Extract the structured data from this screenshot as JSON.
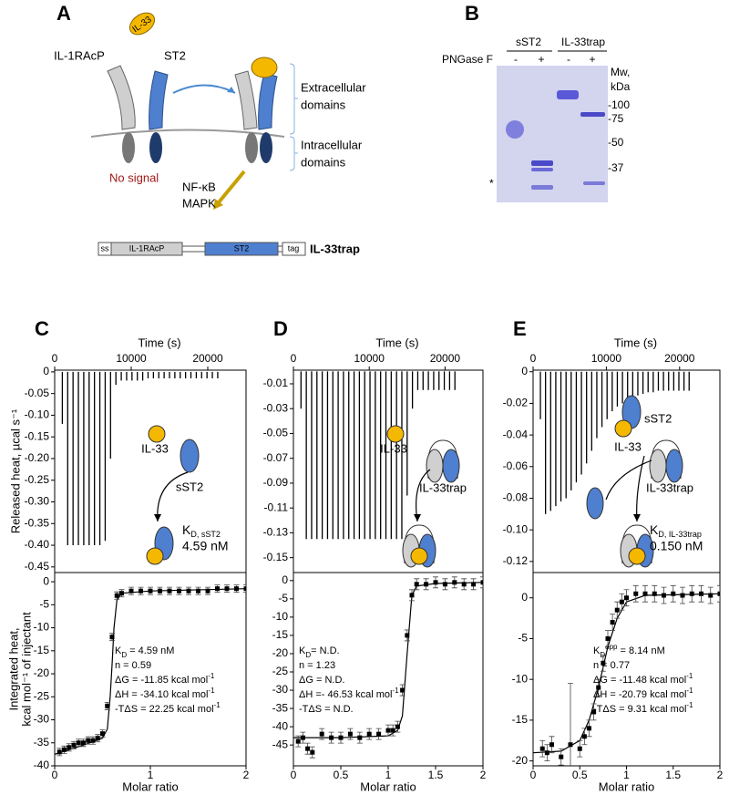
{
  "panel_a": {
    "label": "A",
    "ligand": "IL-33",
    "coreceptor": "IL-1RAcP",
    "receptor": "ST2",
    "extracellular": [
      "Extracellular",
      "domains"
    ],
    "intracellular": [
      "Intracellular",
      "domains"
    ],
    "no_signal": "No signal",
    "signaling": [
      "NF-κB",
      "MAPK"
    ],
    "construct": {
      "parts": [
        "ss",
        "IL-1RAcP",
        "ST2",
        "tag"
      ],
      "name": "IL-33trap"
    }
  },
  "panel_b": {
    "label": "B",
    "groups": [
      "sST2",
      "IL-33trap"
    ],
    "treatment": "PNGase F",
    "lanes": [
      "-",
      "+",
      "-",
      "+"
    ],
    "mw_label": [
      "Mw,",
      "kDa"
    ],
    "markers": [
      "-100",
      "-75",
      "-50",
      "-37"
    ],
    "asterisk": "*"
  },
  "chart_data": [
    {
      "type": "spike",
      "panel_label": "C",
      "xlabel": "Time (s)",
      "ylabel": "Released heat, µcal s⁻¹",
      "color": "#000000",
      "x": [
        1000,
        1700,
        2400,
        3100,
        3800,
        4500,
        5200,
        5900,
        6600,
        7300,
        8000,
        8700,
        9400,
        10100,
        10800,
        11500,
        12200,
        12900,
        13600,
        14300,
        15000,
        15700,
        16400,
        17100,
        17800,
        18500,
        19200,
        19900,
        20600,
        21300
      ],
      "values": [
        -0.12,
        -0.4,
        -0.4,
        -0.4,
        -0.4,
        -0.4,
        -0.4,
        -0.4,
        -0.39,
        -0.2,
        -0.03,
        -0.02,
        -0.02,
        -0.02,
        -0.02,
        -0.02,
        -0.015,
        -0.015,
        -0.015,
        -0.015,
        -0.015,
        -0.015,
        -0.015,
        -0.015,
        -0.015,
        -0.015,
        -0.015,
        -0.015,
        -0.015,
        -0.015
      ],
      "xlim": [
        0,
        25000
      ],
      "xticks": [
        0,
        10000,
        20000
      ],
      "ylim": [
        -0.463,
        0.004
      ],
      "yticks": [
        0,
        -0.05,
        {
          "value": -0.1,
          "label": "-0.10"
        },
        -0.15,
        {
          "value": -0.2,
          "label": "-0.20"
        },
        -0.25,
        {
          "value": -0.3,
          "label": "-0.30"
        },
        -0.35,
        {
          "value": -0.4,
          "label": "-0.40"
        },
        -0.45
      ],
      "scheme": {
        "ligand": "IL-33",
        "receptor": "sST2"
      },
      "kd": {
        "k": "K",
        "sub": "D, sST2",
        "value": "4.59 nM"
      }
    },
    {
      "type": "scatter",
      "xlabel": "Molar ratio",
      "ylabel": [
        "Integrated heat,",
        "kcal mol⁻¹ of injectant"
      ],
      "color": "#000000",
      "x": [
        0.05,
        0.1,
        0.15,
        0.2,
        0.25,
        0.3,
        0.35,
        0.4,
        0.45,
        0.5,
        0.55,
        0.6,
        0.65,
        0.7,
        0.8,
        0.9,
        1.0,
        1.1,
        1.2,
        1.3,
        1.4,
        1.5,
        1.6,
        1.7,
        1.8,
        1.9,
        2.0
      ],
      "values": [
        -37,
        -36.5,
        -36,
        -35.5,
        -35,
        -35,
        -34.5,
        -34.5,
        -34,
        -33,
        -27,
        -12,
        -3,
        -2.5,
        -2,
        -2,
        -2,
        -2,
        -2,
        -2,
        -2,
        -2,
        -2,
        -1.5,
        -1.5,
        -1.5,
        -1.5
      ],
      "errors": [
        0.8,
        0.8,
        0.8,
        0.8,
        0.8,
        0.8,
        0.8,
        0.8,
        0.8,
        0.8,
        0.8,
        0.8,
        0.8,
        0.8,
        0.8,
        0.8,
        0.8,
        0.8,
        0.8,
        0.8,
        0.8,
        0.8,
        0.8,
        0.8,
        0.8,
        0.8,
        0.8
      ],
      "fit": {
        "x": [
          0,
          0.3,
          0.5,
          0.55,
          0.58,
          0.6,
          0.62,
          0.65,
          0.7,
          1.0,
          2.0
        ],
        "y": [
          -37.5,
          -35.5,
          -34,
          -32,
          -25,
          -18,
          -10,
          -4,
          -2.5,
          -2,
          -1.5
        ]
      },
      "xlim": [
        0,
        2
      ],
      "xticks": [
        0,
        1,
        2
      ],
      "ylim": [
        -40,
        2
      ],
      "yticks": [
        0,
        -5,
        -10,
        -15,
        -20,
        -25,
        -30,
        -35,
        -40
      ],
      "params": [
        [
          {
            "t": "K"
          },
          {
            "sub": "D"
          },
          {
            "t": " = 4.59 nM"
          }
        ],
        [
          {
            "t": "n = 0.59"
          }
        ],
        [
          {
            "t": "ΔG = -11.85 kcal mol"
          },
          {
            "sup": "-1"
          }
        ],
        [
          {
            "t": "ΔH = -34.10 kcal mol"
          },
          {
            "sup": "-1"
          }
        ],
        [
          {
            "t": "-TΔS = 22.25 kcal mol"
          },
          {
            "sup": "-1"
          }
        ]
      ]
    },
    {
      "type": "spike",
      "panel_label": "D",
      "xlabel": "Time (s)",
      "color": "#000000",
      "x": [
        1000,
        1700,
        2400,
        3100,
        3800,
        4500,
        5200,
        5900,
        6600,
        7300,
        8000,
        8700,
        9400,
        10100,
        10800,
        11500,
        12200,
        12900,
        13600,
        14300,
        15000,
        15700,
        16400,
        17100,
        17800,
        18500,
        19200,
        19900,
        20600,
        21300
      ],
      "values": [
        -0.03,
        -0.135,
        -0.135,
        -0.135,
        -0.135,
        -0.135,
        -0.135,
        -0.135,
        -0.135,
        -0.135,
        -0.135,
        -0.135,
        -0.135,
        -0.135,
        -0.135,
        -0.135,
        -0.135,
        -0.135,
        -0.135,
        -0.135,
        -0.1,
        -0.03,
        -0.015,
        -0.015,
        -0.015,
        -0.015,
        -0.015,
        -0.015,
        -0.015,
        -0.015
      ],
      "xlim": [
        0,
        25000
      ],
      "xticks": [
        0,
        10000,
        20000
      ],
      "ylim": [
        -0.162,
        0.001
      ],
      "yticks": [
        -0.01,
        -0.03,
        -0.05,
        -0.07,
        -0.09,
        -0.11,
        -0.13,
        -0.15
      ],
      "scheme": {
        "ligand": "IL-33",
        "receptor": "IL-33trap"
      }
    },
    {
      "type": "scatter",
      "xlabel": "Molar ratio",
      "color": "#000000",
      "x": [
        0.05,
        0.1,
        0.15,
        0.2,
        0.3,
        0.4,
        0.5,
        0.6,
        0.7,
        0.8,
        0.9,
        1.0,
        1.05,
        1.1,
        1.15,
        1.2,
        1.25,
        1.3,
        1.4,
        1.5,
        1.6,
        1.7,
        1.8,
        1.9,
        2.0
      ],
      "values": [
        -44,
        -43,
        -46,
        -47,
        -42,
        -43,
        -43,
        -42,
        -43,
        -42,
        -42,
        -41,
        -41,
        -40,
        -30,
        -15,
        -4,
        -1,
        -1,
        -0.5,
        -1,
        -0.5,
        -1,
        -1,
        -0.5
      ],
      "errors": [
        1.5,
        1.5,
        1.5,
        1.5,
        1.5,
        1.5,
        1.5,
        1.5,
        1.5,
        1.5,
        1.5,
        1.5,
        1.5,
        1.5,
        1.5,
        1.5,
        1.5,
        1.5,
        1.5,
        1.5,
        1.5,
        1.5,
        1.5,
        1.5,
        1.5
      ],
      "fit": {
        "x": [
          0,
          0.5,
          1.0,
          1.1,
          1.15,
          1.2,
          1.25,
          1.3,
          1.5,
          2.0
        ],
        "y": [
          -43,
          -43,
          -42.5,
          -41,
          -37,
          -20,
          -4,
          -1.5,
          -0.8,
          -0.5
        ]
      },
      "xlim": [
        0,
        2
      ],
      "xticks": [
        0,
        0.5,
        1,
        1.5,
        2
      ],
      "ylim": [
        -50.7,
        2.2
      ],
      "yticks": [
        0,
        -5,
        -10,
        -15,
        -20,
        -25,
        -30,
        -35,
        -40,
        -45
      ],
      "params": [
        [
          {
            "t": "K"
          },
          {
            "sub": "D"
          },
          {
            "t": "= N.D."
          }
        ],
        [
          {
            "t": "n = 1.23"
          }
        ],
        [
          {
            "t": "ΔG = N.D."
          }
        ],
        [
          {
            "t": "ΔH =- 46.53 kcal mol"
          },
          {
            "sup": "-1"
          }
        ],
        [
          {
            "t": "-TΔS = N.D."
          }
        ]
      ]
    },
    {
      "type": "spike",
      "panel_label": "E",
      "xlabel": "Time (s)",
      "color": "#000000",
      "x": [
        1000,
        1700,
        2400,
        3100,
        3800,
        4500,
        5200,
        5900,
        6600,
        7300,
        8000,
        8700,
        9400,
        10100,
        10800,
        11500,
        12200,
        12900,
        13600,
        14300,
        15000,
        15700,
        16400,
        17100,
        17800,
        18500,
        19200,
        19900,
        20600,
        21300
      ],
      "values": [
        -0.03,
        -0.09,
        -0.088,
        -0.085,
        -0.082,
        -0.08,
        -0.075,
        -0.07,
        -0.065,
        -0.058,
        -0.05,
        -0.042,
        -0.035,
        -0.03,
        -0.025,
        -0.022,
        -0.02,
        -0.018,
        -0.016,
        -0.015,
        -0.014,
        -0.013,
        -0.013,
        -0.012,
        -0.012,
        -0.012,
        -0.012,
        -0.012,
        -0.012,
        -0.012
      ],
      "xlim": [
        0,
        25500
      ],
      "xticks": [
        0,
        10000,
        20000
      ],
      "ylim": [
        -0.127,
        0.001
      ],
      "yticks": [
        0,
        -0.02,
        -0.04,
        -0.06,
        -0.08,
        {
          "value": -0.1,
          "label": "-0.10"
        },
        -0.12
      ],
      "scheme": {
        "ligand": "IL-33",
        "receptor": "IL-33trap",
        "complex": "sST2"
      },
      "kd": {
        "k": "K",
        "sub": "D, IL-33trap",
        "value": "0.150 nM"
      }
    },
    {
      "type": "scatter",
      "xlabel": "Molar ratio",
      "color": "#000000",
      "x": [
        0.1,
        0.15,
        0.2,
        0.3,
        0.4,
        0.5,
        0.55,
        0.6,
        0.65,
        0.7,
        0.75,
        0.8,
        0.85,
        0.9,
        0.95,
        1.0,
        1.1,
        1.2,
        1.3,
        1.4,
        1.5,
        1.6,
        1.7,
        1.8,
        1.9,
        2.0
      ],
      "values": [
        -18.5,
        -19,
        -18,
        -19.5,
        -18,
        -18.5,
        -17,
        -16,
        -14,
        -11,
        -8,
        -5,
        -3,
        -1.5,
        -0.5,
        0,
        0.5,
        0.5,
        0.5,
        0.3,
        0.5,
        0.3,
        0.5,
        0.5,
        0.3,
        0.5
      ],
      "errors": [
        1,
        1,
        1,
        1,
        7.5,
        1,
        1,
        1,
        1,
        1,
        1,
        1,
        1,
        1,
        1,
        1,
        1,
        1,
        1,
        1,
        1,
        1,
        1,
        1,
        1,
        1
      ],
      "fit": {
        "x": [
          0,
          0.3,
          0.5,
          0.6,
          0.7,
          0.75,
          0.8,
          0.9,
          1.0,
          1.2,
          2.0
        ],
        "y": [
          -19,
          -18.8,
          -17.5,
          -15,
          -11,
          -8.5,
          -6,
          -2.5,
          -0.5,
          0.3,
          0.5
        ]
      },
      "xlim": [
        0,
        2
      ],
      "xticks": [
        0,
        0.5,
        1,
        1.5,
        2
      ],
      "ylim": [
        -20.6,
        3.1
      ],
      "yticks": [
        0,
        -5,
        -10,
        -15,
        -20
      ],
      "params": [
        [
          {
            "t": "K"
          },
          {
            "sub": "D"
          },
          {
            "sup": "app"
          },
          {
            "t": " = 8.14 nM"
          }
        ],
        [
          {
            "t": "n = 0.77"
          }
        ],
        [
          {
            "t": "ΔG = -11.48 kcal mol"
          },
          {
            "sup": "-1"
          }
        ],
        [
          {
            "t": "ΔH = -20.79 kcal mol"
          },
          {
            "sup": "-1"
          }
        ],
        [
          {
            "t": "-TΔS = 9.31 kcal mol"
          },
          {
            "sup": "-1"
          }
        ]
      ]
    }
  ]
}
